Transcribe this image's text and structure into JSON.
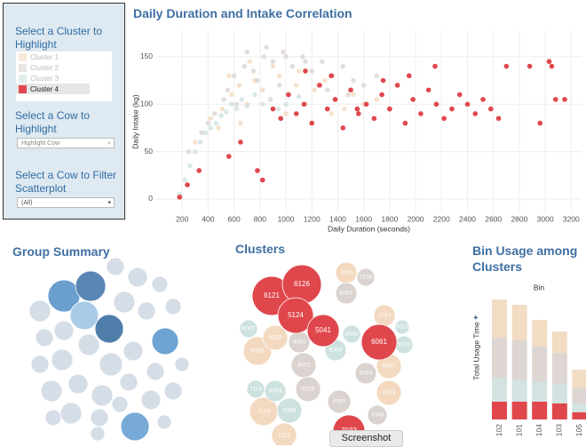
{
  "panel": {
    "cluster_title": "Select a Cluster to Highlight",
    "cow_title": "Select a Cow to Highlight",
    "cow_placeholder": "Highlight Cow",
    "filter_title": "Select a Cow to Filter Scatterplot",
    "filter_value": "(All)",
    "selected_cluster": 3
  },
  "screenshot_button": "Screenshot",
  "chart_data": [
    {
      "type": "scatter",
      "title": "Daily Duration and Intake Correlation",
      "x_label": "Daily Duration (seconds)",
      "y_label": "Daily Intake (kg)",
      "xlim": [
        0,
        3280
      ],
      "ylim": [
        -15,
        178
      ],
      "xticks": [
        200,
        400,
        600,
        800,
        1000,
        1200,
        1400,
        1600,
        1800,
        2000,
        2200,
        2400,
        2600,
        2800,
        3000,
        3200
      ],
      "yticks": [
        0,
        50,
        100,
        150
      ],
      "grid": true,
      "series": [
        {
          "name": "Cluster 1",
          "color": "#f3d9bf",
          "x": [
            300,
            420,
            510,
            580,
            640,
            700,
            760,
            820,
            880,
            950,
            1010,
            1080,
            1150,
            1220,
            1300,
            1380,
            1450,
            1520,
            1600,
            1700,
            1800,
            900,
            650,
            1100,
            1350,
            480,
            560,
            720,
            1000,
            1250
          ],
          "values": [
            60,
            85,
            95,
            110,
            120,
            100,
            125,
            115,
            105,
            130,
            110,
            120,
            100,
            115,
            125,
            105,
            95,
            110,
            100,
            105,
            95,
            140,
            80,
            135,
            90,
            75,
            130,
            145,
            90,
            120
          ]
        },
        {
          "name": "Cluster 2",
          "color": "#dbd3cf",
          "x": [
            250,
            350,
            450,
            520,
            600,
            680,
            750,
            830,
            900,
            980,
            1050,
            1130,
            1200,
            1280,
            1360,
            1440,
            1520,
            1600,
            700,
            850,
            1000,
            1150,
            550,
            620,
            780,
            950,
            1320,
            1480,
            400,
            1700
          ],
          "values": [
            50,
            70,
            90,
            105,
            130,
            140,
            135,
            150,
            145,
            155,
            140,
            150,
            135,
            145,
            130,
            140,
            125,
            120,
            155,
            160,
            150,
            145,
            115,
            100,
            125,
            120,
            115,
            110,
            80,
            130
          ]
        },
        {
          "name": "Cluster 3",
          "color": "#cde2df",
          "x": [
            180,
            220,
            260,
            300,
            340,
            380,
            420,
            460,
            500,
            540,
            580,
            620,
            660,
            700,
            760,
            820,
            880,
            940,
            1000,
            1100
          ],
          "values": [
            5,
            20,
            35,
            50,
            60,
            70,
            75,
            80,
            88,
            92,
            100,
            95,
            105,
            98,
            110,
            100,
            105,
            95,
            100,
            108
          ]
        },
        {
          "name": "Cluster 4",
          "color": "#e0474c",
          "x": [
            180,
            240,
            330,
            560,
            650,
            780,
            820,
            900,
            960,
            1020,
            1080,
            1140,
            1200,
            1260,
            1320,
            1380,
            1440,
            1500,
            1560,
            1620,
            1680,
            1740,
            1800,
            1860,
            1920,
            1980,
            2040,
            2100,
            2160,
            2220,
            2280,
            2340,
            2400,
            2460,
            2520,
            2580,
            2640,
            2700,
            2880,
            2960,
            3030,
            3080,
            3150,
            3050,
            1150,
            1350,
            1550,
            1750,
            1950,
            2150
          ],
          "values": [
            2,
            15,
            30,
            45,
            60,
            30,
            20,
            95,
            85,
            110,
            90,
            100,
            80,
            120,
            95,
            105,
            75,
            115,
            90,
            100,
            85,
            110,
            95,
            120,
            80,
            105,
            90,
            115,
            100,
            85,
            95,
            110,
            100,
            90,
            105,
            95,
            85,
            140,
            140,
            80,
            145,
            105,
            105,
            140,
            135,
            130,
            95,
            125,
            130,
            140
          ]
        }
      ]
    },
    {
      "type": "bubble",
      "title": "Group Summary",
      "values": [
        18,
        17,
        16,
        16,
        15,
        16,
        10,
        11,
        9,
        12,
        12,
        10,
        9,
        10,
        11,
        12,
        11,
        8,
        10,
        12,
        13,
        10,
        12,
        11,
        12,
        10,
        11,
        10,
        12,
        10,
        9,
        8,
        9,
        8
      ],
      "colors": [
        "#6a9fd0",
        "#5a86b5",
        "#a9cbe8",
        "#4f7eaa",
        "#6ea3d3",
        "#77aad6",
        "#d5dde7",
        "#d5dde7",
        "#d5dde7",
        "#d5dde7",
        "#d5dde7",
        "#d5dde7",
        "#d5dde7",
        "#d5dde7",
        "#d5dde7",
        "#d5dde7",
        "#d5dde7",
        "#d5dde7",
        "#d5dde7",
        "#d5dde7",
        "#d5dde7",
        "#d5dde7",
        "#d5dde7",
        "#d5dde7",
        "#d5dde7",
        "#d5dde7",
        "#d5dde7",
        "#d5dde7",
        "#d5dde7",
        "#d5dde7",
        "#d5dde7",
        "#d5dde7",
        "#d5dde7",
        "#d5dde7"
      ]
    },
    {
      "type": "bubble",
      "title": "Clusters",
      "series": [
        {
          "color": "#f3d9bf",
          "labels": [
            "7046",
            "6067",
            "7024",
            "6092",
            "7114",
            "7023",
            "7110",
            "6029"
          ],
          "values": [
            12,
            14,
            12,
            16,
            16,
            14,
            14,
            14
          ]
        },
        {
          "color": "#dbd3cf",
          "labels": [
            "7136",
            "6087",
            "4072",
            "5125",
            "6085",
            "4060",
            "6033",
            "7048"
          ],
          "values": [
            10,
            12,
            14,
            14,
            13,
            12,
            12,
            11
          ]
        },
        {
          "color": "#cde2df",
          "labels": [
            "6084",
            "7116",
            "6068",
            "6009",
            "6042",
            "7043",
            "6007",
            "7027"
          ],
          "values": [
            12,
            10,
            14,
            12,
            10,
            10,
            10,
            8
          ]
        },
        {
          "color": "#e0474c",
          "labels": [
            "6121",
            "6126",
            "5124",
            "5041",
            "6061",
            "7033"
          ],
          "values": [
            22,
            22,
            20,
            18,
            20,
            18
          ]
        }
      ]
    },
    {
      "type": "bar",
      "stacked": true,
      "title": "Bin Usage among Clusters",
      "subtitle": "Bin",
      "y_label": "Total Usage Time",
      "categories": [
        "102",
        "101",
        "104",
        "103",
        "105"
      ],
      "ylim": [
        0,
        140
      ],
      "series": [
        {
          "color": "#e0474c",
          "values": [
            20,
            20,
            20,
            18,
            8
          ]
        },
        {
          "color": "#d2e3e2",
          "values": [
            27,
            25,
            22,
            22,
            10
          ]
        },
        {
          "color": "#ddd6d3",
          "values": [
            45,
            44,
            40,
            35,
            18
          ]
        },
        {
          "color": "#f3dcc4",
          "values": [
            43,
            40,
            30,
            24,
            20
          ]
        }
      ]
    }
  ]
}
